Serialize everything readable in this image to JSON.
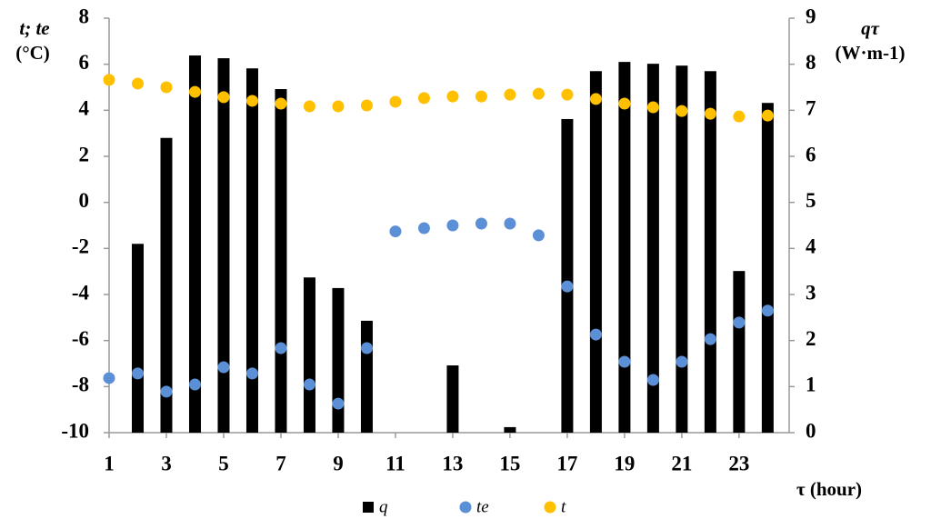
{
  "chart_data": {
    "type": "combo",
    "ylabel": [
      "t; te",
      "(°C)"
    ],
    "y2label": [
      "qτ",
      "(W·m-1)"
    ],
    "xlabel": "τ (hour)",
    "x": [
      1,
      2,
      3,
      4,
      5,
      6,
      7,
      8,
      9,
      10,
      11,
      12,
      13,
      14,
      15,
      16,
      17,
      18,
      19,
      20,
      21,
      22,
      23,
      24
    ],
    "xlim": [
      1,
      24.75
    ],
    "xticks": [
      1,
      3,
      5,
      7,
      9,
      11,
      13,
      15,
      17,
      19,
      21,
      23
    ],
    "ylim": [
      -10,
      8
    ],
    "yticks": [
      -10,
      -8,
      -6,
      -4,
      -2,
      0,
      2,
      4,
      6,
      8
    ],
    "y2lim": [
      0,
      9
    ],
    "y2ticks": [
      0,
      1,
      2,
      3,
      4,
      5,
      6,
      7,
      8,
      9
    ],
    "series": [
      {
        "name": "q",
        "type": "bar",
        "axis": "y2",
        "color": "#000000",
        "values": [
          0,
          4.1,
          6.4,
          8.19,
          8.13,
          7.91,
          7.46,
          3.37,
          3.14,
          2.43,
          0,
          0,
          1.46,
          0,
          0.12,
          0,
          6.81,
          7.85,
          8.05,
          8.01,
          7.97,
          7.85,
          3.51,
          7.16
        ]
      },
      {
        "name": "te",
        "type": "scatter",
        "color": "#5b8fd6",
        "values": [
          -7.63,
          -7.43,
          -8.22,
          -7.91,
          -7.16,
          -7.43,
          -6.33,
          -7.91,
          -8.74,
          -6.33,
          -1.26,
          -1.12,
          -1.0,
          -0.92,
          -0.92,
          -1.43,
          -3.65,
          -5.74,
          -6.92,
          -7.71,
          -6.92,
          -5.94,
          -5.22,
          -4.7
        ]
      },
      {
        "name": "t",
        "type": "scatter",
        "color": "#ffc000",
        "values": [
          5.32,
          5.16,
          5.0,
          4.8,
          4.57,
          4.41,
          4.29,
          4.17,
          4.17,
          4.21,
          4.37,
          4.53,
          4.6,
          4.6,
          4.68,
          4.72,
          4.68,
          4.49,
          4.29,
          4.13,
          3.97,
          3.85,
          3.73,
          3.77
        ]
      }
    ]
  }
}
